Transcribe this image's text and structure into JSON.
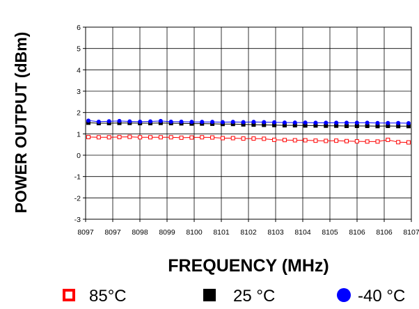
{
  "chart_data": {
    "type": "line",
    "title": "",
    "xlabel": "FREQUENCY (MHz)",
    "ylabel": "POWER OUTPUT (dBm)",
    "ylim": [
      -3,
      6
    ],
    "yticks": [
      "-3",
      "-2",
      "-1",
      "0",
      "1",
      "2",
      "3",
      "4",
      "5",
      "6"
    ],
    "categories": [
      "8097",
      "8097",
      "8097",
      "8098",
      "8098",
      "8098",
      "8099",
      "8099",
      "8099",
      "8100",
      "8100",
      "8100",
      "8101",
      "8101",
      "8101",
      "8102",
      "8102",
      "8102",
      "8103",
      "8103",
      "8103",
      "8104",
      "8104",
      "8104",
      "8105",
      "8105",
      "8105",
      "8106",
      "8106",
      "8106",
      "8107",
      "8107"
    ],
    "xtick_labels": [
      "8097",
      "8097",
      "8098",
      "8099",
      "8100",
      "8101",
      "8102",
      "8103",
      "8104",
      "8105",
      "8106",
      "8106",
      "8107"
    ],
    "grid": true,
    "legend_position": "bottom",
    "series": [
      {
        "name": "85°C",
        "color": "#ff0000",
        "marker": "open-square",
        "values": [
          0.85,
          0.84,
          0.84,
          0.85,
          0.86,
          0.84,
          0.84,
          0.84,
          0.84,
          0.82,
          0.83,
          0.84,
          0.83,
          0.8,
          0.8,
          0.78,
          0.78,
          0.77,
          0.72,
          0.71,
          0.7,
          0.7,
          0.68,
          0.67,
          0.68,
          0.66,
          0.65,
          0.64,
          0.64,
          0.72,
          0.61,
          0.6
        ]
      },
      {
        "name": "25 °C",
        "color": "#000000",
        "marker": "filled-square",
        "values": [
          1.52,
          1.5,
          1.5,
          1.51,
          1.51,
          1.5,
          1.5,
          1.51,
          1.5,
          1.49,
          1.48,
          1.48,
          1.47,
          1.46,
          1.46,
          1.44,
          1.43,
          1.42,
          1.41,
          1.4,
          1.4,
          1.39,
          1.39,
          1.38,
          1.38,
          1.37,
          1.37,
          1.37,
          1.36,
          1.37,
          1.36,
          1.36
        ]
      },
      {
        "name": "-40 °C",
        "color": "#0000ff",
        "marker": "filled-circle",
        "values": [
          1.62,
          1.57,
          1.59,
          1.6,
          1.58,
          1.57,
          1.58,
          1.6,
          1.57,
          1.57,
          1.56,
          1.56,
          1.56,
          1.55,
          1.56,
          1.55,
          1.56,
          1.55,
          1.54,
          1.53,
          1.53,
          1.53,
          1.52,
          1.52,
          1.52,
          1.52,
          1.52,
          1.52,
          1.51,
          1.51,
          1.51,
          1.5
        ]
      }
    ]
  }
}
